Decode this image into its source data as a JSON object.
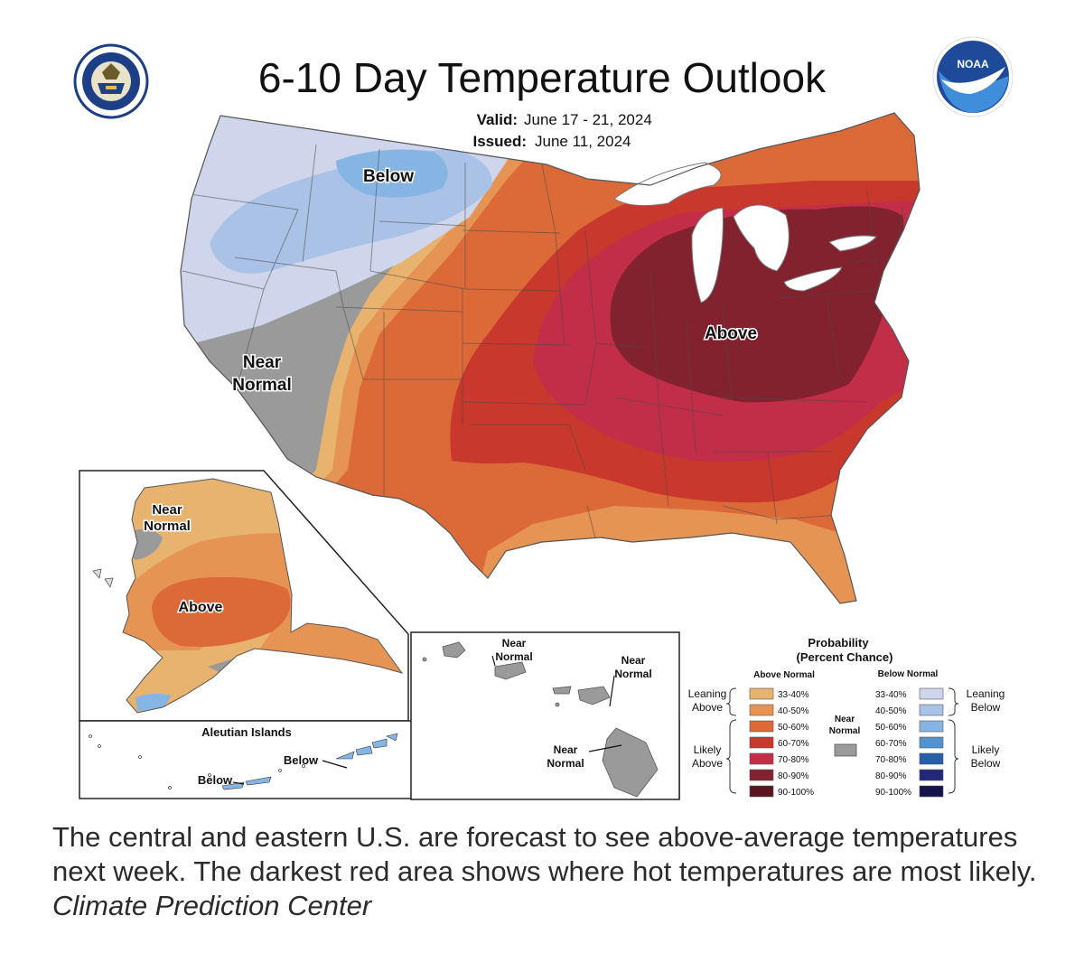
{
  "title": "6-10 Day Temperature Outlook",
  "valid_label": "Valid:",
  "valid_dates": "June 17 - 21, 2024",
  "issued_label": "Issued:",
  "issued_date": "June 11, 2024",
  "map_labels": {
    "below": "Below",
    "above": "Above",
    "near_normal_line1": "Near",
    "near_normal_line2": "Normal"
  },
  "alaska_labels": {
    "near_line1": "Near",
    "near_line2": "Normal",
    "above": "Above"
  },
  "aleutian": {
    "title": "Aleutian Islands",
    "below1": "Below",
    "below2": "Below"
  },
  "hawaii_labels": {
    "near_line1": "Near",
    "near_line2": "Normal"
  },
  "legend": {
    "title_line1": "Probability",
    "title_line2": "(Percent Chance)",
    "above_header": "Above Normal",
    "below_header": "Below Normal",
    "near_line1": "Near",
    "near_line2": "Normal",
    "leaning_above": [
      "Leaning",
      "Above"
    ],
    "likely_above": [
      "Likely",
      "Above"
    ],
    "leaning_below": [
      "Leaning",
      "Below"
    ],
    "likely_below": [
      "Likely",
      "Below"
    ],
    "ranges": [
      "33-40%",
      "40-50%",
      "50-60%",
      "60-70%",
      "70-80%",
      "80-90%",
      "90-100%"
    ],
    "above_colors": [
      "#e7b36f",
      "#e59454",
      "#dc6a38",
      "#c8382d",
      "#c22e47",
      "#82222e",
      "#5a1420"
    ],
    "below_colors": [
      "#cfd6ec",
      "#a9c2e6",
      "#86b5e4",
      "#4f93d1",
      "#245fa8",
      "#22287a",
      "#16134a"
    ],
    "near_color": "#9a9a9a"
  },
  "caption": "The central and eastern U.S. are forecast to see above-average temperatures next week. The darkest red area shows where hot temperatures are most likely.",
  "caption_credit": "Climate Prediction Center",
  "logos": {
    "commerce_seal": "department-of-commerce-seal",
    "noaa_logo_text": "NOAA"
  }
}
